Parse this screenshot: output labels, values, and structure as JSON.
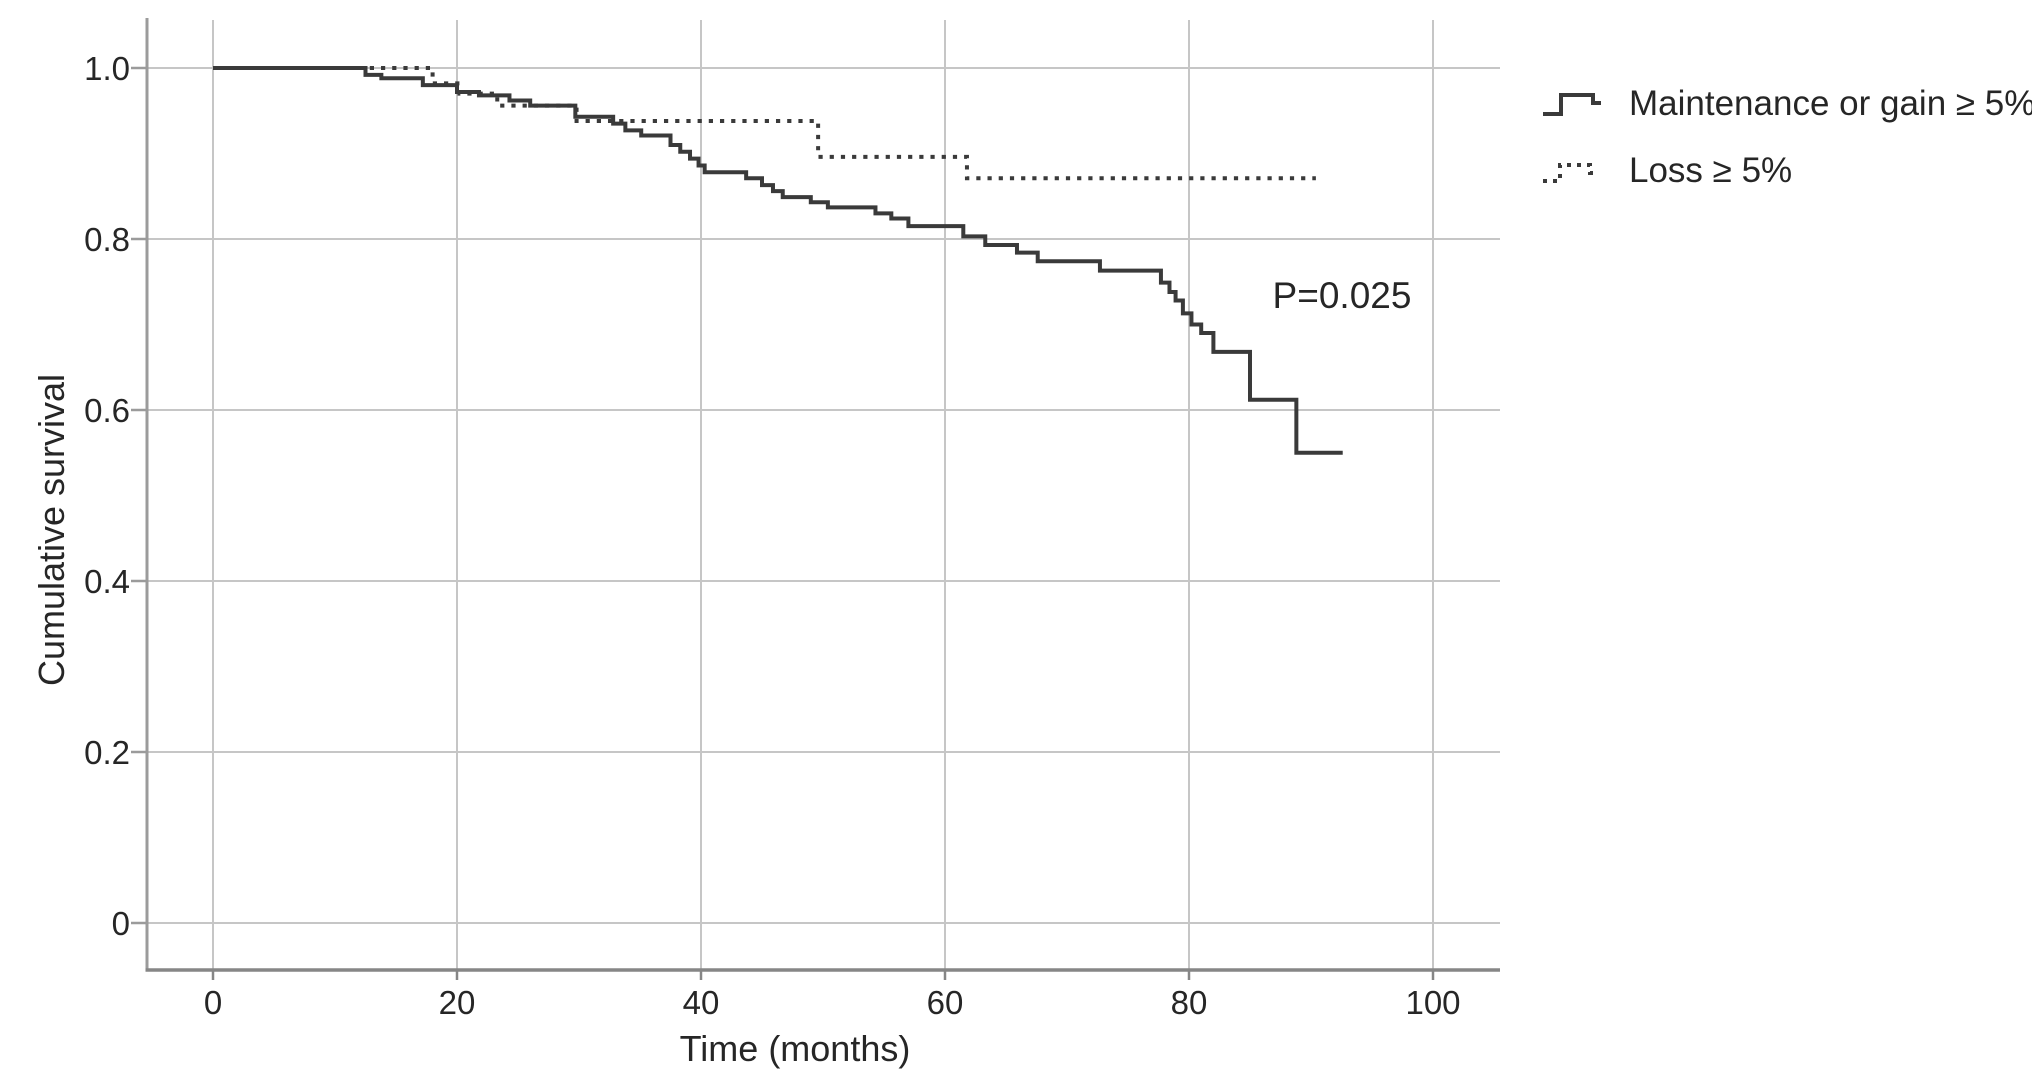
{
  "figure": {
    "background": "#ffffff",
    "annotation": {
      "text": "P=0.025"
    },
    "axes": {
      "x": {
        "label": "Time (months)",
        "ticks": [
          "0",
          "20",
          "40",
          "60",
          "80",
          "100"
        ],
        "tick_values": [
          0,
          20,
          40,
          60,
          80,
          100
        ]
      },
      "y": {
        "label": "Cumulative survival",
        "ticks": [
          "1.0",
          "0.8",
          "0.6",
          "0.4",
          "0.2",
          "0"
        ],
        "tick_values": [
          1.0,
          0.8,
          0.6,
          0.4,
          0.2,
          0
        ]
      }
    },
    "legend": {
      "items": [
        {
          "label": "Maintenance or gain ≥ 5%",
          "style": "solid"
        },
        {
          "label": "Loss ≥ 5%",
          "style": "dotted"
        }
      ]
    },
    "colors": {
      "line": "#3a3a3a",
      "grid": "#c6c6c6",
      "axis_left": "#9b9b9b",
      "axis_bottom": "#868686",
      "text": "#262626"
    }
  },
  "chart_data": {
    "type": "line",
    "subtype": "kaplan-meier-step",
    "title": "",
    "xlabel": "Time (months)",
    "ylabel": "Cumulative survival",
    "xlim": [
      0,
      105
    ],
    "ylim": [
      0,
      1.0
    ],
    "x_ticks": [
      0,
      20,
      40,
      60,
      80,
      100
    ],
    "y_ticks": [
      0,
      0.2,
      0.4,
      0.6,
      0.8,
      1.0
    ],
    "grid": true,
    "legend_position": "outside-top-right",
    "annotation": {
      "text": "P=0.025",
      "x": 92.5,
      "y": 0.73
    },
    "series": [
      {
        "name": "Maintenance or gain ≥ 5%",
        "line_style": "solid",
        "color": "#3a3a3a",
        "steps": [
          [
            0,
            1.0
          ],
          [
            12.5,
            0.992
          ],
          [
            13.8,
            0.988
          ],
          [
            17.2,
            0.98
          ],
          [
            20.0,
            0.972
          ],
          [
            21.8,
            0.968
          ],
          [
            24.3,
            0.962
          ],
          [
            26.0,
            0.956
          ],
          [
            29.7,
            0.943
          ],
          [
            32.8,
            0.935
          ],
          [
            33.8,
            0.927
          ],
          [
            35.1,
            0.921
          ],
          [
            37.5,
            0.91
          ],
          [
            38.3,
            0.902
          ],
          [
            39.1,
            0.894
          ],
          [
            39.8,
            0.886
          ],
          [
            40.3,
            0.878
          ],
          [
            43.7,
            0.871
          ],
          [
            45.0,
            0.863
          ],
          [
            45.9,
            0.856
          ],
          [
            46.7,
            0.849
          ],
          [
            49.0,
            0.843
          ],
          [
            50.4,
            0.837
          ],
          [
            54.3,
            0.83
          ],
          [
            55.6,
            0.824
          ],
          [
            57.0,
            0.815
          ],
          [
            61.5,
            0.803
          ],
          [
            63.3,
            0.793
          ],
          [
            65.9,
            0.784
          ],
          [
            67.6,
            0.774
          ],
          [
            72.7,
            0.763
          ],
          [
            77.7,
            0.749
          ],
          [
            78.4,
            0.738
          ],
          [
            78.9,
            0.728
          ],
          [
            79.5,
            0.713
          ],
          [
            80.2,
            0.7
          ],
          [
            81.0,
            0.69
          ],
          [
            82.0,
            0.668
          ],
          [
            85.0,
            0.612
          ],
          [
            88.8,
            0.55
          ]
        ],
        "end_time": 92.6
      },
      {
        "name": "Loss ≥ 5%",
        "line_style": "dotted",
        "color": "#3a3a3a",
        "steps": [
          [
            0,
            1.0
          ],
          [
            18.0,
            0.982
          ],
          [
            20.2,
            0.97
          ],
          [
            23.3,
            0.956
          ],
          [
            29.8,
            0.938
          ],
          [
            49.6,
            0.896
          ],
          [
            61.8,
            0.871
          ]
        ],
        "end_time": 90.4
      }
    ]
  }
}
